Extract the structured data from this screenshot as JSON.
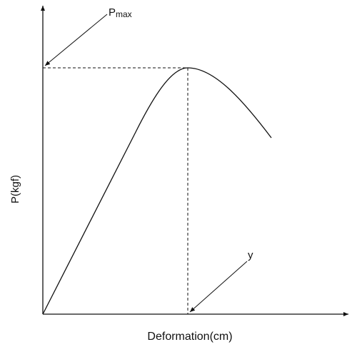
{
  "labels": {
    "peak_load": "P",
    "peak_load_subscript": "max",
    "deformation_marker": "y",
    "y_axis": "P(kgf)",
    "x_axis": "Deformation(cm)"
  }
}
